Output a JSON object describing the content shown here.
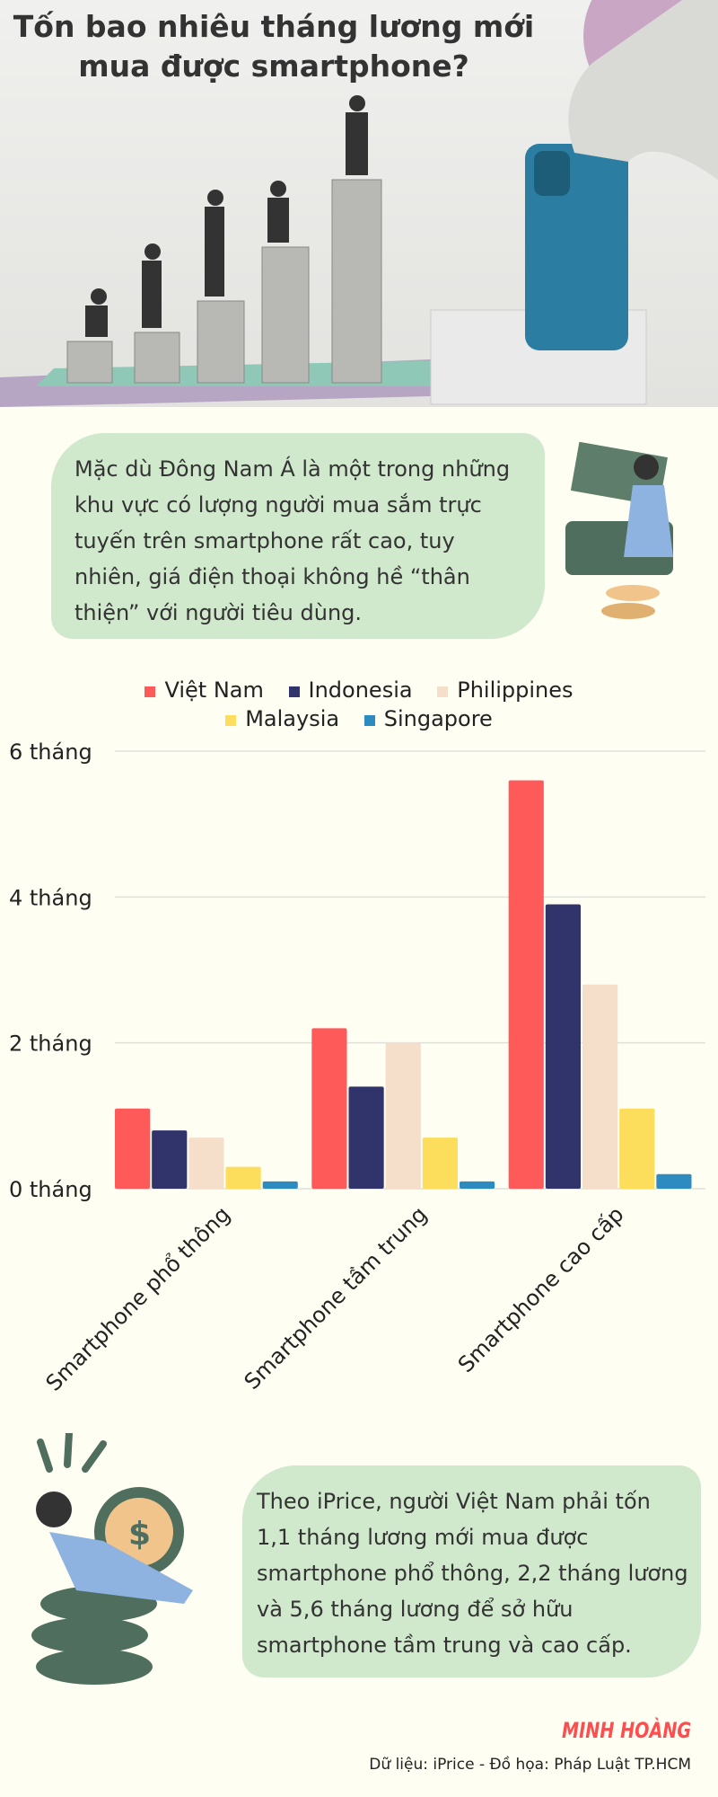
{
  "header": {
    "title": "Tốn bao nhiêu tháng lương mới mua được smartphone?"
  },
  "intro": "Mặc dù Đông Nam Á là một trong những khu vực có lượng người mua sắm trực tuyến trên smartphone rất cao, tuy nhiên, giá điện thoại không hề “thân thiện” với người tiêu dùng.",
  "conclusion": "Theo iPrice, người Việt Nam phải tốn 1,1 tháng lương mới mua được smartphone phổ thông, 2,2 tháng lương và 5,6 tháng lương để sở hữu smartphone tầm trung và cao cấp.",
  "author": "MINH HOÀNG",
  "credit": "Dữ liệu: iPrice - Đồ họa: Pháp Luật TP.HCM",
  "chart_data": {
    "type": "bar",
    "categories": [
      "Smartphone phổ thông",
      "Smartphone tầm trung",
      "Smartphone cao cấp"
    ],
    "series": [
      {
        "name": "Việt Nam",
        "color": "#ff5a5a",
        "values": [
          1.1,
          2.2,
          5.6
        ]
      },
      {
        "name": "Indonesia",
        "color": "#31336b",
        "values": [
          0.8,
          1.4,
          3.9
        ]
      },
      {
        "name": "Philippines",
        "color": "#f5dfca",
        "values": [
          0.7,
          2.0,
          2.8
        ]
      },
      {
        "name": "Malaysia",
        "color": "#fddd5c",
        "values": [
          0.3,
          0.7,
          1.1
        ]
      },
      {
        "name": "Singapore",
        "color": "#2e8bc0",
        "values": [
          0.1,
          0.1,
          0.2
        ]
      }
    ],
    "yticks": [
      "0 tháng",
      "2 tháng",
      "4 tháng",
      "6 tháng"
    ],
    "ylim": [
      0,
      6
    ],
    "grid": true,
    "legend": "top"
  }
}
